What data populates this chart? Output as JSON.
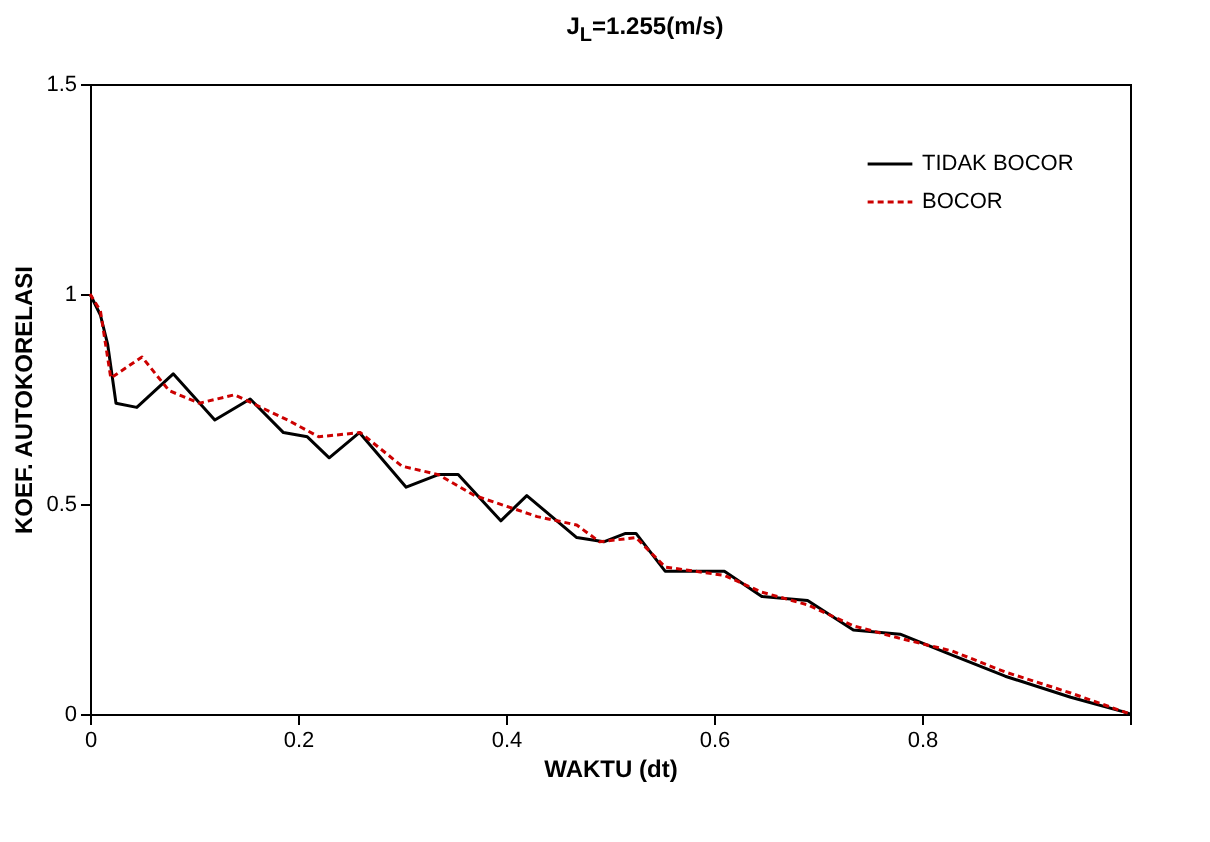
{
  "chart_data": {
    "type": "line",
    "title": "J$_{L}$=1.255(m/s)",
    "xlabel": "WAKTU (dt)",
    "ylabel": "KOEF. AUTOKORELASI",
    "xlim": [
      0,
      1
    ],
    "ylim": [
      0,
      1.5
    ],
    "xticks": [
      0,
      0.2,
      0.4,
      0.6,
      0.8,
      {
        "value": 1,
        "label": null
      }
    ],
    "yticks": [
      0,
      0.5,
      1,
      1.5
    ],
    "grid": false,
    "legend": "top right",
    "marker": "none",
    "series": [
      {
        "name": "TIDAK BOCOR",
        "color": "#000000",
        "line_style": "solid",
        "x": [
          0,
          0.01,
          0.017,
          0.025,
          0.045,
          0.08,
          0.12,
          0.154,
          0.186,
          0.209,
          0.23,
          0.259,
          0.304,
          0.335,
          0.354,
          0.395,
          0.42,
          0.468,
          0.494,
          0.515,
          0.525,
          0.553,
          0.61,
          0.646,
          0.69,
          0.734,
          0.779,
          0.829,
          0.88,
          0.943,
          0.994,
          1
        ],
        "values": [
          1,
          0.95,
          0.88,
          0.74,
          0.73,
          0.81,
          0.7,
          0.75,
          0.67,
          0.66,
          0.61,
          0.67,
          0.54,
          0.57,
          0.57,
          0.46,
          0.52,
          0.42,
          0.41,
          0.43,
          0.43,
          0.34,
          0.34,
          0.28,
          0.27,
          0.2,
          0.19,
          0.14,
          0.09,
          0.04,
          0.005,
          0
        ]
      },
      {
        "name": "BOCOR",
        "color": "#cc0000",
        "line_style": "dashed",
        "x": [
          0,
          0.01,
          0.02,
          0.05,
          0.076,
          0.105,
          0.139,
          0.19,
          0.22,
          0.26,
          0.3,
          0.335,
          0.37,
          0.43,
          0.468,
          0.49,
          0.525,
          0.553,
          0.61,
          0.646,
          0.69,
          0.734,
          0.779,
          0.829,
          0.88,
          0.943,
          1
        ],
        "values": [
          1,
          0.96,
          0.8,
          0.85,
          0.77,
          0.74,
          0.76,
          0.7,
          0.66,
          0.67,
          0.59,
          0.57,
          0.52,
          0.47,
          0.45,
          0.41,
          0.42,
          0.35,
          0.33,
          0.29,
          0.26,
          0.21,
          0.18,
          0.15,
          0.1,
          0.05,
          0
        ]
      }
    ]
  }
}
